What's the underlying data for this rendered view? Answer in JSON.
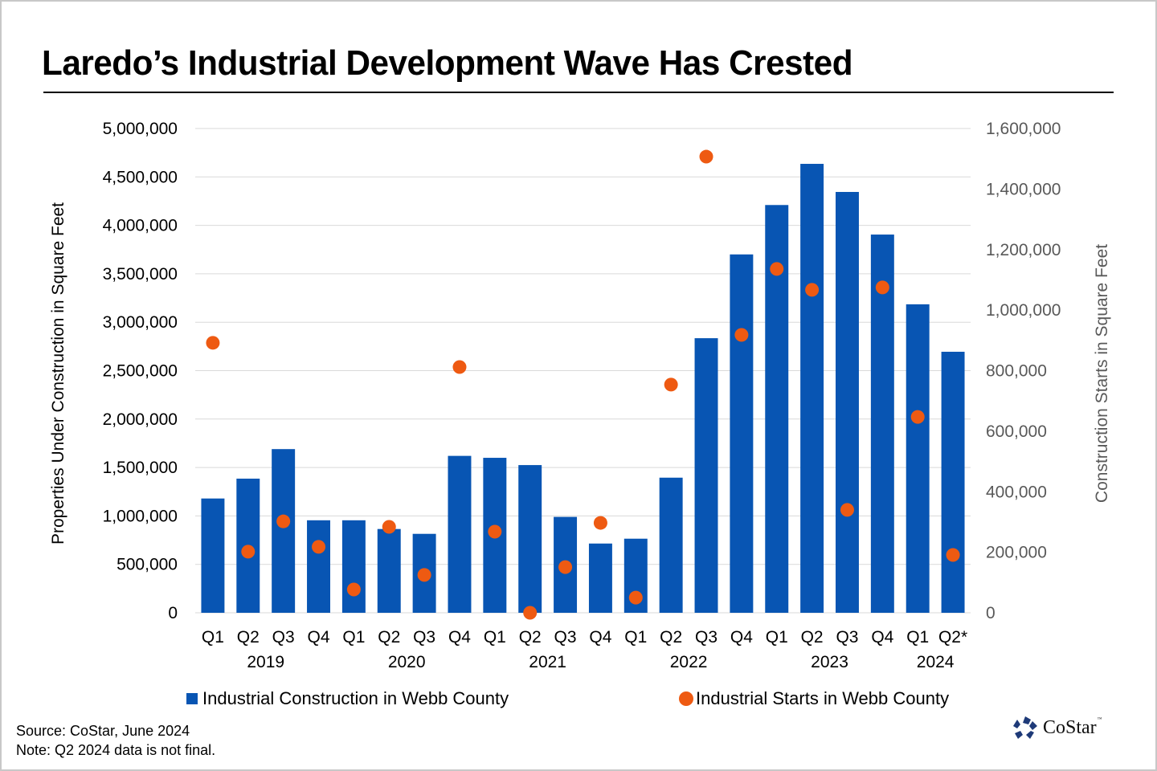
{
  "title": "Laredo’s Industrial Development Wave Has Crested",
  "footer": {
    "source": "Source: CoStar, June 2024",
    "note": "Note: Q2 2024 data is not final."
  },
  "logo": {
    "text": "CoStar",
    "tm": "™",
    "icon": "costar-star-icon"
  },
  "colors": {
    "bar": "#0855B3",
    "dot": "#EE5A12",
    "grid": "#D9D9D9",
    "right_axis_text": "#595959"
  },
  "chart_data": {
    "type": "bar+scatter",
    "title": "Laredo’s Industrial Development Wave Has Crested",
    "categories": [
      "Q1",
      "Q2",
      "Q3",
      "Q4",
      "Q1",
      "Q2",
      "Q3",
      "Q4",
      "Q1",
      "Q2",
      "Q3",
      "Q4",
      "Q1",
      "Q2",
      "Q3",
      "Q4",
      "Q1",
      "Q2",
      "Q3",
      "Q4",
      "Q1",
      "Q2*"
    ],
    "year_labels": [
      {
        "label": "2019",
        "under_index": 1.5
      },
      {
        "label": "2020",
        "under_index": 5.5
      },
      {
        "label": "2021",
        "under_index": 9.5
      },
      {
        "label": "2022",
        "under_index": 13.5
      },
      {
        "label": "2023",
        "under_index": 17.5
      },
      {
        "label": "2024",
        "under_index": 20.5
      }
    ],
    "series": [
      {
        "name": "Industrial Construction in Webb County",
        "type": "bar",
        "axis": "left",
        "values": [
          1180000,
          1385000,
          1690000,
          955000,
          955000,
          865000,
          815000,
          1620000,
          1600000,
          1525000,
          990000,
          715000,
          765000,
          1395000,
          2835000,
          3700000,
          4210000,
          4635000,
          4345000,
          3905000,
          3185000,
          2695000
        ]
      },
      {
        "name": "Industrial Starts in Webb County",
        "type": "scatter",
        "axis": "right",
        "values": [
          892000,
          202000,
          302000,
          218000,
          77000,
          284000,
          125000,
          812000,
          268000,
          0,
          151000,
          297000,
          50000,
          754000,
          1507000,
          918000,
          1136000,
          1067000,
          340000,
          1075000,
          647000,
          191000
        ]
      }
    ],
    "ylabel": "Properties Under Construction in Square Feet",
    "ylabel_right": "Construction Starts in Square Feet",
    "ylim": [
      0,
      5000000
    ],
    "ylim_right": [
      0,
      1600000
    ],
    "yticks": [
      "0",
      "500,000",
      "1,000,000",
      "1,500,000",
      "2,000,000",
      "2,500,000",
      "3,000,000",
      "3,500,000",
      "4,000,000",
      "4,500,000",
      "5,000,000"
    ],
    "yticks_values": [
      0,
      500000,
      1000000,
      1500000,
      2000000,
      2500000,
      3000000,
      3500000,
      4000000,
      4500000,
      5000000
    ],
    "yticks_right": [
      "0",
      "200,000",
      "400,000",
      "600,000",
      "800,000",
      "1,000,000",
      "1,200,000",
      "1,400,000",
      "1,600,000"
    ],
    "yticks_right_values": [
      0,
      200000,
      400000,
      600000,
      800000,
      1000000,
      1200000,
      1400000,
      1600000
    ],
    "grid": true,
    "legend": {
      "position": "bottom",
      "items": [
        {
          "label": "Industrial Construction in Webb County",
          "marker": "square"
        },
        {
          "label": "Industrial Starts in Webb County",
          "marker": "circle"
        }
      ]
    }
  }
}
